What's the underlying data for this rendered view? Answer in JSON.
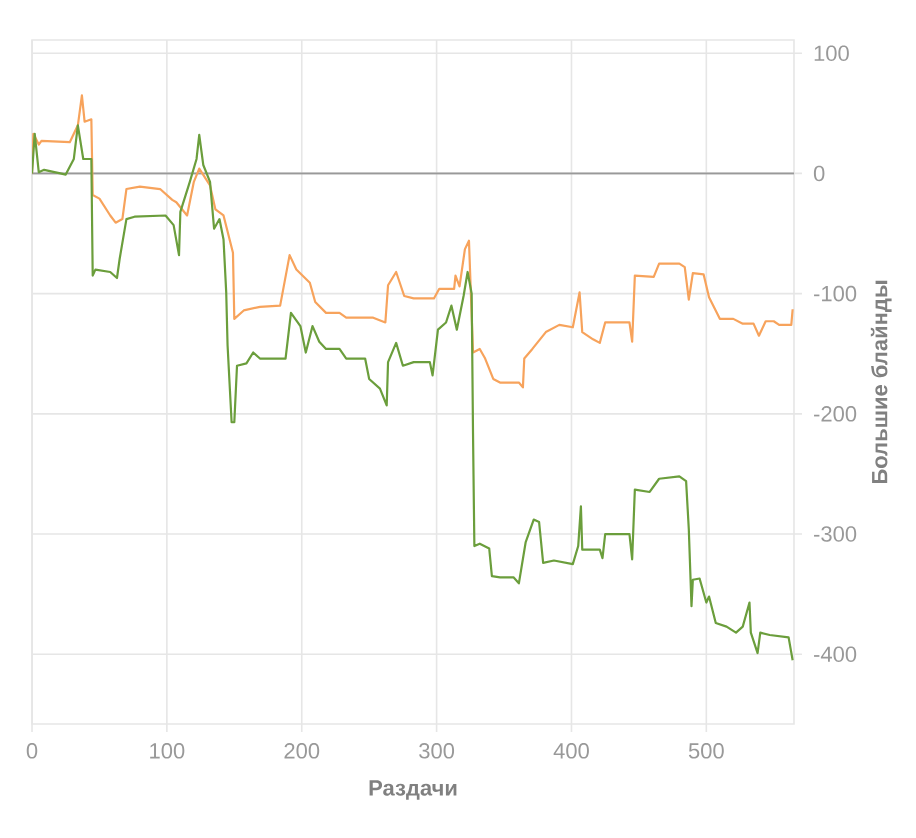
{
  "chart_data": {
    "type": "line",
    "xlabel": "Раздачи",
    "ylabel": "Большие блайнды",
    "xlim": [
      0,
      565
    ],
    "ylim": [
      -458,
      111
    ],
    "xticks": [
      0,
      100,
      200,
      300,
      400,
      500
    ],
    "yticks": [
      -400,
      -300,
      -200,
      -100,
      0,
      100
    ],
    "grid": true,
    "ref_lines": [
      {
        "axis": "y",
        "value": 0,
        "color": "#999999"
      }
    ],
    "series": [
      {
        "color": "#f7a35c",
        "x": [
          0,
          1,
          5,
          7,
          28,
          31,
          34,
          37,
          39,
          44,
          45,
          50,
          58,
          62,
          67,
          70,
          80,
          95,
          104,
          107,
          115,
          120,
          124,
          132,
          136,
          142,
          149,
          150,
          157,
          169,
          184,
          191,
          196,
          206,
          210,
          218,
          228,
          233,
          253,
          262,
          264,
          270,
          276,
          283,
          298,
          302,
          313,
          314,
          317,
          321,
          324,
          327,
          332,
          336,
          342,
          347,
          361,
          364,
          365,
          371,
          381,
          391,
          401,
          406,
          408,
          416,
          421,
          425,
          443,
          445,
          447,
          461,
          465,
          480,
          484,
          487,
          490,
          498,
          502,
          510,
          520,
          527,
          535,
          539,
          544,
          550,
          554,
          563,
          564
        ],
        "values": [
          0,
          33,
          24,
          27,
          26,
          33,
          40,
          65,
          43,
          45,
          -18,
          -21,
          -35,
          -41,
          -38,
          -13,
          -11,
          -13,
          -22,
          -24,
          -35,
          -7,
          4,
          -10,
          -30,
          -35,
          -66,
          -121,
          -114,
          -111,
          -110,
          -68,
          -80,
          -91,
          -107,
          -116,
          -116,
          -120,
          -120,
          -124,
          -93,
          -82,
          -102,
          -104,
          -104,
          -96,
          -96,
          -85,
          -94,
          -63,
          -56,
          -149,
          -146,
          -154,
          -171,
          -174,
          -174,
          -178,
          -154,
          -146,
          -132,
          -126,
          -128,
          -99,
          -132,
          -138,
          -141,
          -124,
          -124,
          -140,
          -85,
          -86,
          -75,
          -75,
          -78,
          -105,
          -83,
          -84,
          -103,
          -121,
          -121,
          -125,
          -125,
          -135,
          -123,
          -123,
          -126,
          -126,
          -113
        ]
      },
      {
        "color": "#6b9e3c",
        "x": [
          0,
          2,
          5,
          9,
          21,
          25,
          31,
          34,
          38,
          44,
          45,
          47,
          58,
          63,
          65,
          70,
          76,
          99,
          105,
          109,
          110,
          117,
          122,
          124,
          127,
          132,
          135,
          139,
          142,
          144,
          145,
          148,
          150,
          152,
          159,
          164,
          169,
          188,
          192,
          199,
          203,
          208,
          213,
          218,
          228,
          233,
          247,
          250,
          258,
          263,
          264,
          270,
          275,
          283,
          295,
          297,
          301,
          307,
          311,
          315,
          320,
          323,
          326,
          327,
          328,
          332,
          339,
          341,
          347,
          357,
          361,
          366,
          372,
          376,
          379,
          387,
          401,
          405,
          407,
          408,
          421,
          423,
          425,
          443,
          445,
          447,
          458,
          465,
          480,
          485,
          487,
          489,
          490,
          495,
          500,
          502,
          507,
          515,
          522,
          527,
          532,
          533,
          538,
          540,
          547,
          561,
          564
        ],
        "values": [
          0,
          33,
          1,
          3,
          0,
          -1,
          12,
          40,
          12,
          12,
          -85,
          -80,
          -82,
          -87,
          -71,
          -38,
          -36,
          -35,
          -43,
          -68,
          -32,
          -7,
          12,
          32,
          7,
          -7,
          -46,
          -38,
          -55,
          -99,
          -143,
          -207,
          -207,
          -160,
          -158,
          -149,
          -154,
          -154,
          -116,
          -127,
          -149,
          -127,
          -140,
          -146,
          -146,
          -154,
          -154,
          -171,
          -179,
          -193,
          -157,
          -141,
          -160,
          -157,
          -157,
          -168,
          -130,
          -124,
          -110,
          -130,
          -102,
          -82,
          -100,
          -216,
          -310,
          -308,
          -312,
          -335,
          -336,
          -336,
          -341,
          -307,
          -288,
          -290,
          -324,
          -322,
          -325,
          -310,
          -277,
          -313,
          -313,
          -320,
          -300,
          -300,
          -321,
          -263,
          -265,
          -254,
          -252,
          -256,
          -296,
          -360,
          -338,
          -337,
          -357,
          -352,
          -374,
          -377,
          -382,
          -377,
          -357,
          -382,
          -399,
          -382,
          -384,
          -386,
          -405
        ]
      }
    ]
  }
}
